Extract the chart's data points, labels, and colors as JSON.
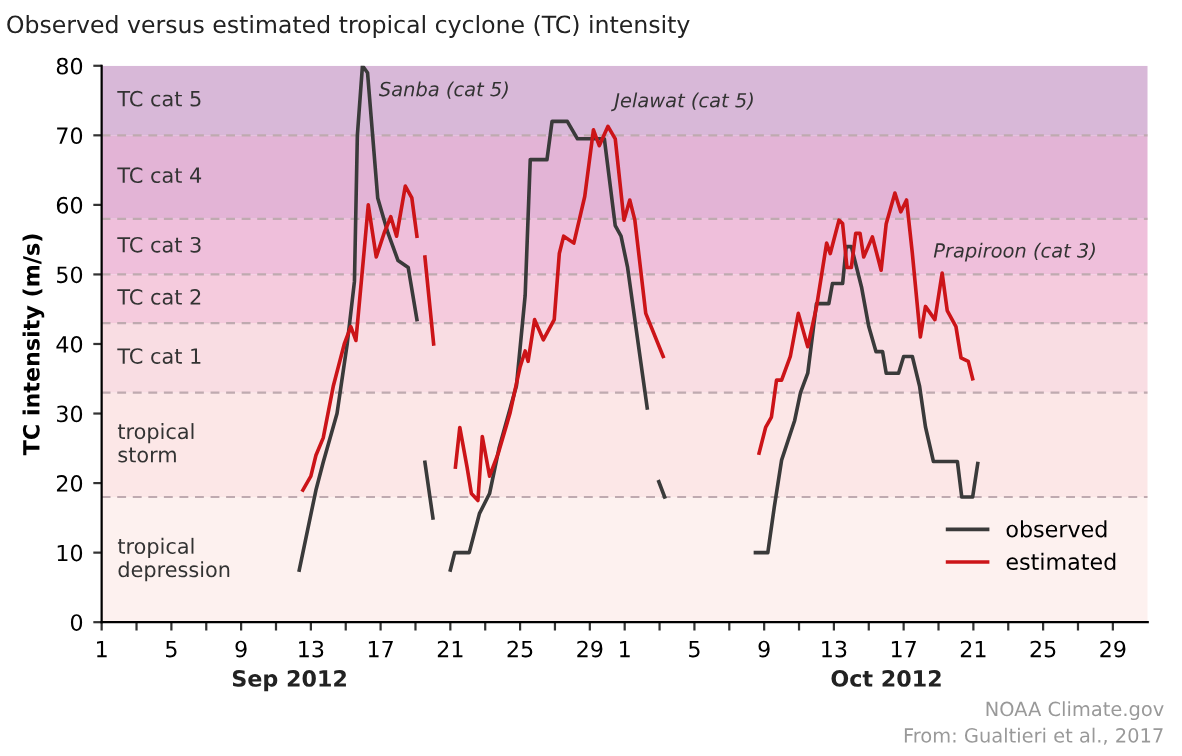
{
  "chart_data": {
    "type": "line",
    "title": "Observed versus estimated tropical cyclone (TC) intensity",
    "ylabel": "TC intensity (m/s)",
    "xlim": [
      "2012-09-01",
      "2012-10-31"
    ],
    "xticks": [
      {
        "value": "2012-09-01",
        "label": "1"
      },
      {
        "value": "2012-09-03",
        "label": null
      },
      {
        "value": "2012-09-05",
        "label": "5"
      },
      {
        "value": "2012-09-07",
        "label": null
      },
      {
        "value": "2012-09-09",
        "label": "9"
      },
      {
        "value": "2012-09-11",
        "label": null
      },
      {
        "value": "2012-09-13",
        "label": "13"
      },
      {
        "value": "2012-09-15",
        "label": null
      },
      {
        "value": "2012-09-17",
        "label": "17"
      },
      {
        "value": "2012-09-19",
        "label": null
      },
      {
        "value": "2012-09-21",
        "label": "21"
      },
      {
        "value": "2012-09-23",
        "label": null
      },
      {
        "value": "2012-09-25",
        "label": "25"
      },
      {
        "value": "2012-09-27",
        "label": null
      },
      {
        "value": "2012-09-29",
        "label": "29"
      },
      {
        "value": "2012-10-01",
        "label": "1"
      },
      {
        "value": "2012-10-03",
        "label": null
      },
      {
        "value": "2012-10-05",
        "label": "5"
      },
      {
        "value": "2012-10-07",
        "label": null
      },
      {
        "value": "2012-10-09",
        "label": "9"
      },
      {
        "value": "2012-10-11",
        "label": null
      },
      {
        "value": "2012-10-13",
        "label": "13"
      },
      {
        "value": "2012-10-15",
        "label": null
      },
      {
        "value": "2012-10-17",
        "label": "17"
      },
      {
        "value": "2012-10-19",
        "label": null
      },
      {
        "value": "2012-10-21",
        "label": "21"
      },
      {
        "value": "2012-10-23",
        "label": null
      },
      {
        "value": "2012-10-25",
        "label": "25"
      },
      {
        "value": "2012-10-27",
        "label": null
      },
      {
        "value": "2012-10-29",
        "label": "29"
      }
    ],
    "ylim": [
      0,
      80
    ],
    "yticks": [
      0,
      10,
      20,
      30,
      40,
      50,
      60,
      70,
      80
    ],
    "grid": false,
    "legend": "bottom right",
    "marker": "none",
    "line_style": "solid",
    "bands": [
      {
        "axis": "y",
        "from": 0,
        "to": 18,
        "label": "tropical\ndepression",
        "color": "#fdf1ef"
      },
      {
        "axis": "y",
        "from": 18,
        "to": 33,
        "label": "tropical\nstorm",
        "color": "#fce7e7"
      },
      {
        "axis": "y",
        "from": 33,
        "to": 43,
        "label": "TC cat 1",
        "color": "#f9dde3"
      },
      {
        "axis": "y",
        "from": 43,
        "to": 50,
        "label": "TC cat 2",
        "color": "#f5cbdd"
      },
      {
        "axis": "y",
        "from": 50,
        "to": 58,
        "label": "TC cat 3",
        "color": "#efbfdb"
      },
      {
        "axis": "y",
        "from": 58,
        "to": 70,
        "label": "TC cat 4",
        "color": "#e3b4d6"
      },
      {
        "axis": "y",
        "from": 70,
        "to": 80,
        "label": "TC cat 5",
        "color": "#d8b8d8"
      }
    ],
    "ref_lines": [
      {
        "axis": "y",
        "value": 18,
        "color": "#bfaab0",
        "line_style": "dashed"
      },
      {
        "axis": "y",
        "value": 33,
        "color": "#bfaab0",
        "line_style": "dashed"
      },
      {
        "axis": "y",
        "value": 43,
        "color": "#bfaab0",
        "line_style": "dashed"
      },
      {
        "axis": "y",
        "value": 50,
        "color": "#bfaab0",
        "line_style": "dashed"
      },
      {
        "axis": "y",
        "value": 58,
        "color": "#bfaab0",
        "line_style": "dashed"
      },
      {
        "axis": "y",
        "value": 70,
        "color": "#bfaab0",
        "line_style": "dashed"
      }
    ],
    "series": [
      {
        "name": "observed",
        "color": "#3a3a3a",
        "x": [
          "2012-09-12T08:00",
          "2012-09-13T07:00",
          "2012-09-13T17:00",
          "2012-09-14T12:00",
          "2012-09-15T02:00",
          "2012-09-15T12:00",
          "2012-09-15T16:00",
          "2012-09-15T23:00",
          "2012-09-16T06:00",
          "2012-09-16T20:00",
          "2012-09-17T10:00",
          "2012-09-18T00:00",
          "2012-09-18T14:00",
          "2012-09-19T02:00",
          "2012-09-19T06:00",
          "2012-09-19T13:00",
          "2012-09-20T00:00",
          "2012-09-20T12:00",
          "2012-09-21T00:00",
          "2012-09-21T06:00",
          "2012-09-22T02:00",
          "2012-09-22T16:00",
          "2012-09-23T06:00",
          "2012-09-23T19:00",
          "2012-09-24T19:00",
          "2012-09-25T07:00",
          "2012-09-25T14:00",
          "2012-09-26T13:00",
          "2012-09-26T20:00",
          "2012-09-27T17:00",
          "2012-09-28T07:00",
          "2012-09-29T20:00",
          "2012-09-30T11:00",
          "2012-09-30T19:00",
          "2012-10-01T04:00",
          "2012-10-01T14:00",
          "2012-10-02T07:00",
          "2012-10-02T12:00",
          "2012-10-02T23:00",
          "2012-10-03T07:00",
          "2012-10-05T00:00",
          "2012-10-08T12:00",
          "2012-10-09T05:00",
          "2012-10-09T14:00",
          "2012-10-10T00:00",
          "2012-10-10T18:00",
          "2012-10-11T02:00",
          "2012-10-11T12:00",
          "2012-10-12T00:00",
          "2012-10-12T17:00",
          "2012-10-12T22:00",
          "2012-10-13T12:00",
          "2012-10-13T17:00",
          "2012-10-14T00:00",
          "2012-10-14T14:00",
          "2012-10-15T00:00",
          "2012-10-15T10:00",
          "2012-10-15T19:00",
          "2012-10-16T00:00",
          "2012-10-16T17:00",
          "2012-10-17T00:00",
          "2012-10-17T12:00",
          "2012-10-17T22:00",
          "2012-10-18T06:00",
          "2012-10-18T17:00",
          "2012-10-20T02:00",
          "2012-10-20T08:00",
          "2012-10-20T23:00",
          "2012-10-21T06:00"
        ],
        "values": [
          7.5,
          19,
          23,
          30,
          40,
          49,
          70,
          80,
          79,
          61,
          56,
          52,
          51,
          43.5,
          null,
          23,
          15,
          null,
          7.5,
          10,
          10,
          15.6,
          18.5,
          25,
          34,
          47,
          66.5,
          66.5,
          72,
          72,
          69.5,
          69.5,
          57,
          55.5,
          51,
          43.5,
          30.8,
          null,
          20.2,
          18,
          null,
          10,
          10,
          16.6,
          23.3,
          29,
          33,
          35.8,
          45.8,
          45.8,
          48.7,
          48.7,
          54,
          54,
          48.2,
          42.5,
          38.9,
          38.9,
          35.8,
          35.8,
          38.2,
          38.2,
          33.9,
          28.1,
          23.1,
          23.1,
          18,
          18,
          22.8
        ]
      },
      {
        "name": "estimated",
        "color": "#cc1418",
        "x": [
          "2012-09-12T13:00",
          "2012-09-13T00:00",
          "2012-09-13T07:00",
          "2012-09-13T17:00",
          "2012-09-14T07:00",
          "2012-09-14T22:00",
          "2012-09-15T07:00",
          "2012-09-15T14:00",
          "2012-09-16T01:00",
          "2012-09-16T07:00",
          "2012-09-16T18:00",
          "2012-09-17T05:00",
          "2012-09-17T14:00",
          "2012-09-17T22:00",
          "2012-09-18T10:00",
          "2012-09-18T19:00",
          "2012-09-19T02:00",
          "2012-09-19T06:00",
          "2012-09-19T13:00",
          "2012-09-20T01:00",
          "2012-09-20T18:00",
          "2012-09-21T07:00",
          "2012-09-21T13:00",
          "2012-09-21T23:00",
          "2012-09-22T05:00",
          "2012-09-22T14:00",
          "2012-09-22T20:00",
          "2012-09-23T06:00",
          "2012-09-23T18:00",
          "2012-09-24T10:00",
          "2012-09-25T00:00",
          "2012-09-25T07:00",
          "2012-09-25T11:00",
          "2012-09-25T20:00",
          "2012-09-26T08:00",
          "2012-09-26T23:00",
          "2012-09-27T06:00",
          "2012-09-27T12:00",
          "2012-09-28T02:00",
          "2012-09-28T17:00",
          "2012-09-29T05:00",
          "2012-09-29T13:00",
          "2012-09-30T01:00",
          "2012-09-30T11:00",
          "2012-09-30T23:00",
          "2012-10-01T07:00",
          "2012-10-01T14:00",
          "2012-10-02T05:00",
          "2012-10-03T05:00",
          "2012-10-05T00:00",
          "2012-10-08T17:00",
          "2012-10-09T02:00",
          "2012-10-09T10:00",
          "2012-10-09T17:00",
          "2012-10-10T00:00",
          "2012-10-10T12:00",
          "2012-10-10T23:00",
          "2012-10-11T12:00",
          "2012-10-12T00:00",
          "2012-10-12T14:00",
          "2012-10-12T19:00",
          "2012-10-13T07:00",
          "2012-10-13T12:00",
          "2012-10-13T18:00",
          "2012-10-14T00:00",
          "2012-10-14T06:00",
          "2012-10-14T12:00",
          "2012-10-14T17:00",
          "2012-10-15T05:00",
          "2012-10-15T17:00",
          "2012-10-16T00:00",
          "2012-10-16T12:00",
          "2012-10-16T20:00",
          "2012-10-17T04:00",
          "2012-10-17T12:00",
          "2012-10-17T23:00",
          "2012-10-18T06:00",
          "2012-10-18T19:00",
          "2012-10-19T05:00",
          "2012-10-19T12:00",
          "2012-10-20T00:00",
          "2012-10-20T07:00",
          "2012-10-20T17:00",
          "2012-10-20T23:00"
        ],
        "values": [
          19,
          21,
          24,
          26.5,
          34,
          40,
          42.5,
          40.5,
          53,
          60,
          52.5,
          56,
          58.3,
          55.5,
          62.7,
          61,
          55.5,
          null,
          52.5,
          40,
          null,
          22.3,
          28,
          22.3,
          18.5,
          17.5,
          26.7,
          21,
          24.3,
          30,
          36.7,
          39,
          37.5,
          43.5,
          40.6,
          43.5,
          53,
          55.5,
          54.5,
          61.2,
          70.8,
          68.5,
          71.3,
          69.5,
          57.8,
          60.7,
          57.8,
          44.4,
          38.2,
          null,
          24.3,
          28,
          29.5,
          34.8,
          34.8,
          38.2,
          44.4,
          39.6,
          45.3,
          54.5,
          53,
          57.8,
          57.3,
          51,
          51,
          55.9,
          55.9,
          52.5,
          55.4,
          50.6,
          57.3,
          61.7,
          59,
          60.7,
          53,
          41,
          45.4,
          43.5,
          50.2,
          44.8,
          42.5,
          38,
          37.5,
          35
        ]
      }
    ],
    "annotations": [
      "Sanba (cat 5)",
      "Jelawat (cat 5)",
      "Prapiroon (cat 3)",
      "Sep 2012",
      "Oct 2012",
      "NOAA Climate.gov",
      "From: Gualtieri et al., 2017"
    ]
  }
}
